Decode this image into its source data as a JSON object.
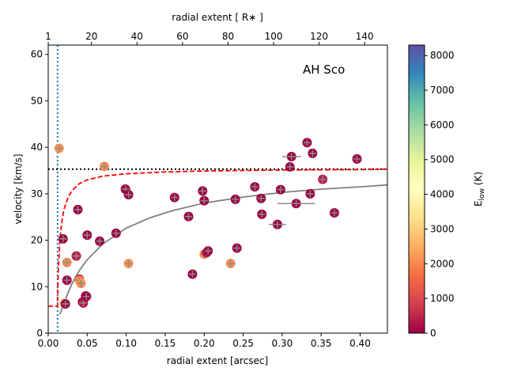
{
  "chart_data": {
    "type": "scatter",
    "title": "",
    "annotation": "AH Sco",
    "xlabel": "radial extent [arcsec]",
    "xlim": [
      0,
      0.435
    ],
    "xticks": [
      0.0,
      0.05,
      0.1,
      0.15,
      0.2,
      0.25,
      0.3,
      0.35,
      0.4
    ],
    "xtick_labels": [
      "0.00",
      "0.05",
      "0.10",
      "0.15",
      "0.20",
      "0.25",
      "0.30",
      "0.35",
      "0.40"
    ],
    "ylabel": "velocity [km/s]",
    "ylim": [
      0,
      62
    ],
    "yticks": [
      0,
      10,
      20,
      30,
      40,
      50,
      60
    ],
    "ytick_labels": [
      "0",
      "10",
      "20",
      "30",
      "40",
      "50",
      "60"
    ],
    "top_xlabel": "radial extent [ R∗ ]",
    "top_xlim": [
      1,
      150
    ],
    "top_xticks": [
      1,
      20,
      40,
      60,
      80,
      100,
      120,
      140
    ],
    "top_xtick_labels": [
      "1",
      "20",
      "40",
      "60",
      "80",
      "100",
      "120",
      "140"
    ],
    "colorbar": {
      "label": "E",
      "label_sub": "low",
      "label_suffix": " (K)",
      "range": [
        0,
        8300
      ],
      "ticks": [
        0,
        1000,
        2000,
        3000,
        4000,
        5000,
        6000,
        7000,
        8000
      ],
      "tick_labels": [
        "0",
        "1000",
        "2000",
        "3000",
        "4000",
        "5000",
        "6000",
        "7000",
        "8000"
      ],
      "colormap": [
        [
          0.0,
          "#9e0142"
        ],
        [
          0.1,
          "#d53e4f"
        ],
        [
          0.2,
          "#f46d43"
        ],
        [
          0.3,
          "#fdae61"
        ],
        [
          0.4,
          "#fee08b"
        ],
        [
          0.5,
          "#ffffbf"
        ],
        [
          0.6,
          "#e6f598"
        ],
        [
          0.7,
          "#abdda4"
        ],
        [
          0.8,
          "#66c2a5"
        ],
        [
          0.9,
          "#3288bd"
        ],
        [
          1.0,
          "#5e4fa2"
        ]
      ]
    },
    "reference_lines": {
      "vertical_dotted_x": 0.012,
      "horizontal_dotted_y": 35.3,
      "dotted_color": "#000000",
      "vertical_color": "#1f77b4"
    },
    "series": [
      {
        "name": "red dashed model",
        "color": "#ff0000",
        "style": "dashed",
        "x": [
          0.0,
          0.012,
          0.012,
          0.013,
          0.015,
          0.017,
          0.02,
          0.025,
          0.03,
          0.04,
          0.05,
          0.07,
          0.1,
          0.15,
          0.2,
          0.25,
          0.3,
          0.35,
          0.4,
          0.435
        ],
        "y": [
          5.8,
          5.8,
          8.0,
          14.0,
          20.0,
          23.5,
          26.5,
          29.0,
          30.6,
          32.2,
          33.0,
          33.8,
          34.3,
          34.7,
          34.9,
          35.0,
          35.1,
          35.15,
          35.2,
          35.3
        ]
      },
      {
        "name": "grey model",
        "color": "#808080",
        "style": "solid",
        "x": [
          0.015,
          0.02,
          0.03,
          0.04,
          0.05,
          0.07,
          0.1,
          0.13,
          0.16,
          0.2,
          0.25,
          0.3,
          0.35,
          0.4,
          0.435
        ],
        "y": [
          4.0,
          6.5,
          10.5,
          13.5,
          15.8,
          19.2,
          22.6,
          24.8,
          26.4,
          28.0,
          29.3,
          30.3,
          31.0,
          31.5,
          31.9
        ]
      }
    ],
    "points": {
      "x": [
        0.014,
        0.019,
        0.02,
        0.022,
        0.024,
        0.024,
        0.036,
        0.038,
        0.04,
        0.04,
        0.042,
        0.044,
        0.045,
        0.048,
        0.049,
        0.05,
        0.066,
        0.072,
        0.087,
        0.099,
        0.103,
        0.103,
        0.162,
        0.18,
        0.185,
        0.198,
        0.2,
        0.2,
        0.203,
        0.205,
        0.234,
        0.24,
        0.242,
        0.265,
        0.273,
        0.274,
        0.294,
        0.298,
        0.31,
        0.312,
        0.318,
        0.332,
        0.336,
        0.339,
        0.352,
        0.367,
        0.396
      ],
      "y": [
        39.8,
        20.3,
        6.5,
        6.3,
        15.2,
        11.4,
        16.6,
        26.6,
        11.6,
        11.4,
        10.7,
        6.7,
        6.5,
        8.0,
        7.9,
        21.1,
        19.8,
        35.9,
        21.5,
        31.0,
        29.8,
        15.0,
        29.2,
        25.1,
        12.7,
        30.6,
        17.0,
        28.5,
        17.3,
        17.7,
        15.0,
        28.8,
        18.3,
        31.5,
        29.0,
        25.6,
        23.4,
        30.9,
        35.8,
        38.0,
        27.9,
        41.0,
        30.0,
        38.7,
        33.1,
        25.9,
        37.5
      ],
      "e_low": [
        2100,
        0,
        3300,
        0,
        2050,
        0,
        400,
        0,
        0,
        2000,
        2100,
        0,
        300,
        0,
        0,
        0,
        0,
        2050,
        0,
        0,
        0,
        2150,
        0,
        0,
        0,
        0,
        2050,
        0,
        300,
        0,
        2050,
        0,
        0,
        0,
        0,
        0,
        0,
        0,
        0,
        0,
        0,
        0,
        0,
        0,
        400,
        0,
        0
      ],
      "xerr": [
        0,
        0,
        0,
        0,
        0,
        0,
        0,
        0,
        0,
        0,
        0,
        0,
        0,
        0,
        0,
        0,
        0,
        0,
        0,
        0,
        0,
        0,
        0,
        0,
        0,
        0,
        0,
        0,
        0,
        0,
        0,
        0,
        0,
        0,
        0,
        0,
        0.011,
        0,
        0,
        0.012,
        0.024,
        0,
        0,
        0,
        0,
        0,
        0
      ]
    }
  }
}
